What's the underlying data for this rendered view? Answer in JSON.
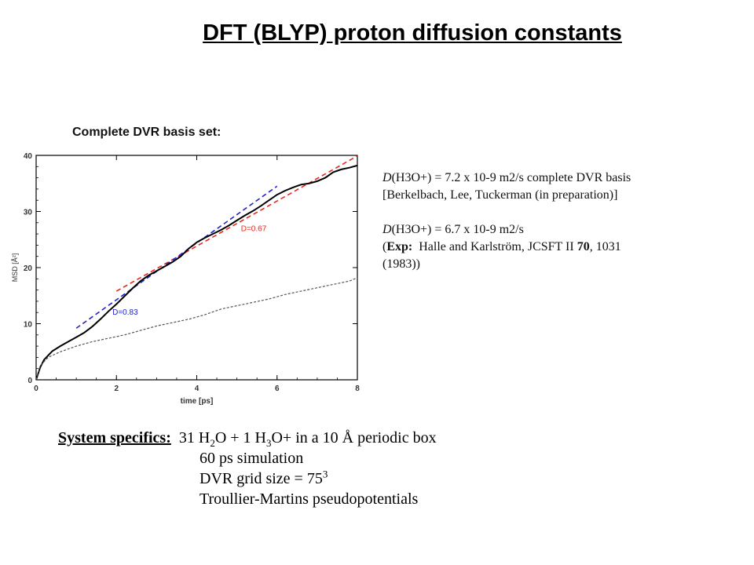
{
  "title": "DFT (BLYP) proton diffusion constants",
  "subtitle": "Complete DVR basis set:",
  "notes": {
    "line1": {
      "D": "D",
      "text": "(H3O+) = 7.2 x 10-9 m2/s complete DVR basis"
    },
    "line2": "[Berkelbach, Lee, Tuckerman (in preparation)]",
    "line3": {
      "D": "D",
      "text": "(H3O+) = 6.7 x 10-9 m2/s"
    },
    "line4": {
      "open": "(",
      "exp": "Exp:",
      "rest": "  Halle and Karlström, JCSFT II ",
      "vol": "70",
      "tail": ", 1031"
    },
    "line5": "(1983))"
  },
  "specs": {
    "label": "System specifics:",
    "line1": {
      "a": "31 H",
      "b": "2",
      "c": "O + 1 H",
      "d": "3",
      "e": "O+ in a 10 Å periodic box"
    },
    "line2": "60 ps simulation",
    "line3": {
      "a": "DVR grid size = 75",
      "b": "3"
    },
    "line4": "Troullier-Martins pseudopotentials"
  },
  "chart_data": {
    "type": "line",
    "xlabel": "time [ps]",
    "ylabel": "MSD [Å²]",
    "xlim": [
      0,
      8
    ],
    "ylim": [
      0,
      40
    ],
    "xticks": [
      0,
      2,
      4,
      6,
      8
    ],
    "yticks": [
      0,
      10,
      20,
      30,
      40
    ],
    "grid": false,
    "legend": "none",
    "series": [
      {
        "style": "solid",
        "color": "#000000",
        "x": [
          0,
          0.1,
          0.2,
          0.4,
          0.6,
          0.8,
          1.0,
          1.2,
          1.4,
          1.6,
          1.8,
          2.0,
          2.2,
          2.4,
          2.6,
          2.8,
          3.0,
          3.2,
          3.4,
          3.6,
          3.8,
          4.0,
          4.2,
          4.4,
          4.6,
          4.8,
          5.0,
          5.2,
          5.4,
          5.6,
          5.8,
          6.0,
          6.2,
          6.4,
          6.6,
          6.8,
          7.0,
          7.2,
          7.4,
          7.6,
          7.8,
          8.0
        ],
        "y": [
          0,
          2.2,
          3.6,
          5.1,
          6.0,
          6.8,
          7.6,
          8.4,
          9.5,
          10.8,
          12.2,
          13.5,
          14.9,
          16.3,
          17.6,
          18.6,
          19.4,
          20.2,
          21.0,
          22.0,
          23.4,
          24.5,
          25.3,
          26.0,
          26.7,
          27.5,
          28.4,
          29.3,
          30.1,
          31.0,
          32.0,
          33.0,
          33.7,
          34.3,
          34.8,
          35.0,
          35.4,
          36.0,
          37.0,
          37.5,
          37.8,
          38.2
        ]
      },
      {
        "style": "dashed",
        "color": "#555555",
        "x": [
          0,
          0.1,
          0.3,
          0.6,
          1.0,
          1.4,
          1.8,
          2.2,
          2.6,
          3.0,
          3.4,
          3.8,
          4.2,
          4.6,
          5.0,
          5.4,
          5.8,
          6.2,
          6.6,
          7.0,
          7.4,
          7.8,
          8.0
        ],
        "y": [
          0,
          2.5,
          4.0,
          5.0,
          6.0,
          6.8,
          7.4,
          8.0,
          8.8,
          9.6,
          10.2,
          10.8,
          11.6,
          12.6,
          13.2,
          13.8,
          14.4,
          15.2,
          15.8,
          16.4,
          17.0,
          17.6,
          18.2
        ]
      }
    ],
    "fits": [
      {
        "label": "D=0.67",
        "color": "#e8281e",
        "x": [
          2,
          8
        ],
        "y": [
          15.8,
          39.9
        ],
        "label_x": 5.1,
        "label_y": 26.5
      },
      {
        "label": "D=0.83",
        "color": "#2222cc",
        "x": [
          1,
          6
        ],
        "y": [
          9.2,
          34.5
        ],
        "label_x": 1.9,
        "label_y": 11.6
      }
    ]
  }
}
